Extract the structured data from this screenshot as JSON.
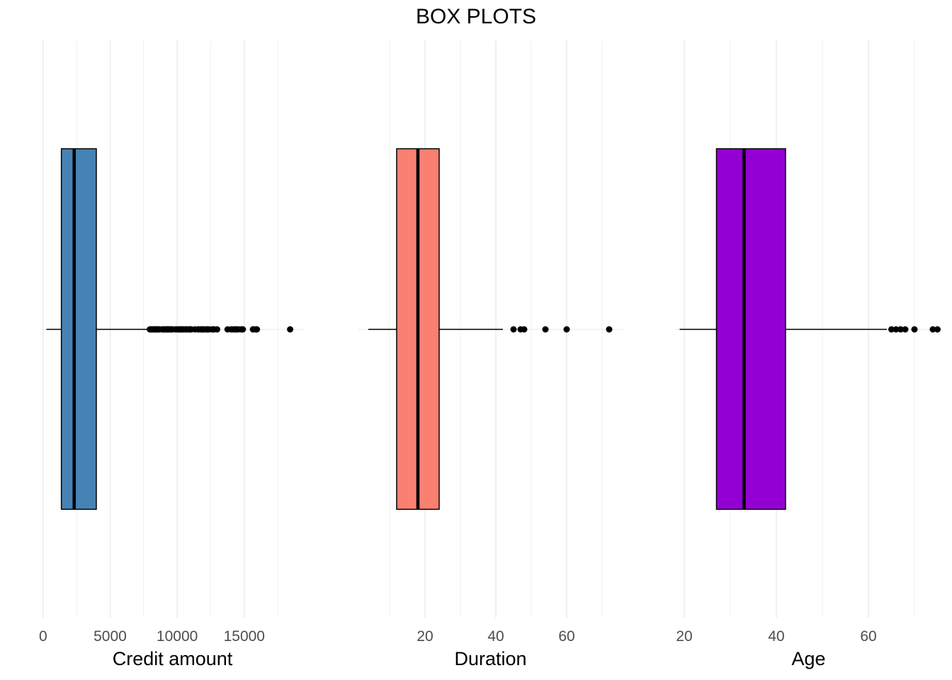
{
  "title": "BOX PLOTS",
  "chart_data": [
    {
      "type": "box",
      "orientation": "horizontal",
      "xlabel": "Credit amount",
      "fill": "#4682b4",
      "xlim": [
        -200,
        19500
      ],
      "ticks": [
        0,
        5000,
        10000,
        15000
      ],
      "tick_labels": [
        "0",
        "5000",
        "10000",
        "15000"
      ],
      "minor_ticks": [
        2500,
        7500,
        12500,
        17500
      ],
      "grid": true,
      "stats": {
        "min": 250,
        "q1": 1366,
        "median": 2320,
        "q3": 3972,
        "max": 7882
      },
      "outliers": [
        7966,
        8065,
        8133,
        8229,
        8318,
        8358,
        8386,
        8471,
        8487,
        8588,
        8613,
        8648,
        8858,
        8947,
        9034,
        9055,
        9157,
        9271,
        9277,
        9283,
        9398,
        9436,
        9566,
        9572,
        9629,
        9857,
        9960,
        10127,
        10144,
        10222,
        10297,
        10366,
        10477,
        10623,
        10722,
        10875,
        10961,
        10974,
        11054,
        11328,
        11560,
        11590,
        11760,
        11816,
        11938,
        11998,
        12169,
        12204,
        12259,
        12389,
        12612,
        12680,
        12749,
        12976,
        13756,
        14027,
        14179,
        14318,
        14421,
        14555,
        14782,
        14896,
        15653,
        15672,
        15857,
        15945,
        18424
      ]
    },
    {
      "type": "box",
      "orientation": "horizontal",
      "xlabel": "Duration",
      "fill": "#fa8072",
      "xlim": [
        1,
        76
      ],
      "ticks": [
        20,
        40,
        60
      ],
      "tick_labels": [
        "20",
        "40",
        "60"
      ],
      "minor_ticks": [
        10,
        30,
        50,
        70
      ],
      "grid": true,
      "stats": {
        "min": 4,
        "q1": 12,
        "median": 18,
        "q3": 24,
        "max": 42
      },
      "outliers": [
        45,
        47,
        48,
        54,
        60,
        72
      ]
    },
    {
      "type": "box",
      "orientation": "horizontal",
      "xlabel": "Age",
      "fill": "#9400d3",
      "xlim": [
        18,
        76
      ],
      "ticks": [
        20,
        40,
        60
      ],
      "tick_labels": [
        "20",
        "40",
        "60"
      ],
      "minor_ticks": [
        30,
        50,
        70
      ],
      "grid": true,
      "stats": {
        "min": 19,
        "q1": 27,
        "median": 33,
        "q3": 42,
        "max": 64
      },
      "outliers": [
        65,
        66,
        67,
        68,
        70,
        74,
        75
      ]
    }
  ]
}
